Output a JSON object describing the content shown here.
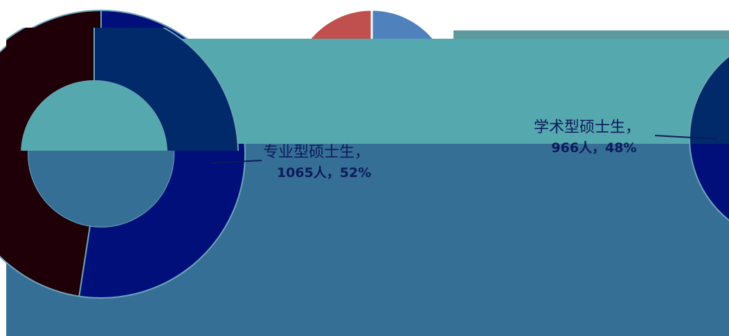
{
  "chart_data": {
    "type": "pie",
    "variant": "doughnut",
    "title": "",
    "categories": [
      "学术型硕士生",
      "专业型硕士生"
    ],
    "values": [
      966,
      1065
    ],
    "percents": [
      48,
      52
    ],
    "units": "人",
    "labels": [
      {
        "line1": "学术型硕士生，",
        "line2": "966人，48%"
      },
      {
        "line1": "专业型硕士生，",
        "line2": "1065人，52%"
      }
    ],
    "colors": {
      "academic": "#1f0008",
      "professional": "#000f7a",
      "backdrop_slice_blue": "#4f81bd",
      "backdrop_slice_red": "#c0504d",
      "band_teal": "#55a8ad",
      "panel_blue": "#356f96",
      "label_text": "#0d1a5c"
    }
  }
}
